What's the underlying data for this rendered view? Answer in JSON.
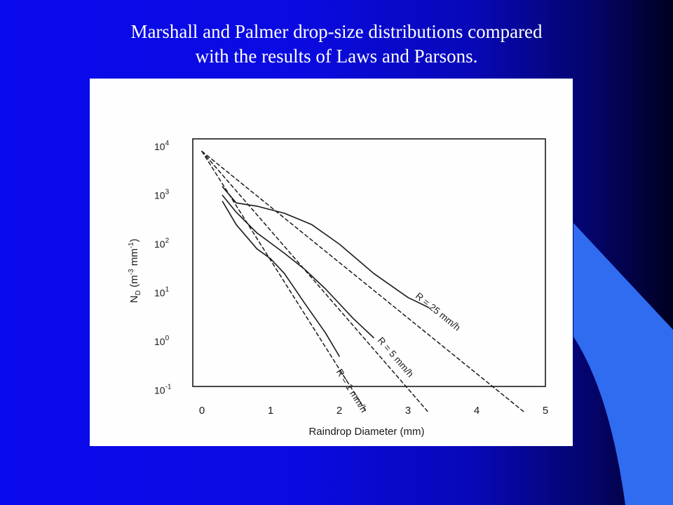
{
  "slide": {
    "title_line1": "Marshall and Palmer drop-size distributions compared",
    "title_line2": "with the results of Laws and Parsons.",
    "colors": {
      "background": "#0a0aee",
      "accent_shape": "#2f6cf0",
      "title_text": "#ffffff",
      "figure_bg": "#fefefe",
      "ink": "#1a1a1a"
    }
  },
  "chart_data": {
    "type": "line",
    "title": "",
    "xlabel": "Raindrop Diameter (mm)",
    "ylabel": "N_D (m^-3 mm^-1)",
    "ylabel_main": "N",
    "ylabel_sub": "D",
    "ylabel_rest": " (m",
    "ylabel_exp1": "-3",
    "ylabel_mid": " mm",
    "ylabel_exp2": "-1",
    "ylabel_end": ")",
    "xlim": [
      0,
      5
    ],
    "ylim_log10": [
      -1,
      4
    ],
    "yscale": "log",
    "grid": false,
    "x_ticks": [
      "0",
      "1",
      "2",
      "3",
      "4",
      "5"
    ],
    "y_ticks": [
      {
        "base": "10",
        "exp": "4"
      },
      {
        "base": "10",
        "exp": "3"
      },
      {
        "base": "10",
        "exp": "2"
      },
      {
        "base": "10",
        "exp": "1"
      },
      {
        "base": "10",
        "exp": "0"
      },
      {
        "base": "10",
        "exp": "-1"
      }
    ],
    "series": [
      {
        "name": "R = 25 mm/h",
        "style": "dashed",
        "x": [
          0,
          4.7
        ],
        "y": [
          8000,
          0.035
        ]
      },
      {
        "name": "R = 5 mm/h",
        "style": "dashed",
        "x": [
          0,
          3.3
        ],
        "y": [
          8000,
          0.035
        ]
      },
      {
        "name": "R = 1 mm/h",
        "style": "dashed",
        "x": [
          0,
          2.4
        ],
        "y": [
          8000,
          0.035
        ]
      },
      {
        "style": "solid",
        "x": [
          0.3,
          0.5,
          0.8,
          1.2,
          1.6,
          2.0,
          2.5,
          3.0,
          3.3
        ],
        "y": [
          1500,
          700,
          600,
          430,
          250,
          100,
          25,
          8,
          5
        ]
      },
      {
        "style": "solid",
        "x": [
          0.3,
          0.5,
          0.8,
          1.0,
          1.2,
          1.5,
          1.8,
          2.2,
          2.5
        ],
        "y": [
          1000,
          450,
          170,
          105,
          65,
          30,
          12,
          3,
          1.2
        ]
      },
      {
        "style": "solid",
        "x": [
          0.3,
          0.5,
          0.8,
          1.0,
          1.2,
          1.5,
          1.8,
          2.0
        ],
        "y": [
          750,
          250,
          80,
          50,
          25,
          6,
          1.5,
          0.5
        ]
      }
    ],
    "labels": [
      {
        "text": "R = 25 mm/h"
      },
      {
        "text": "R = 5 mm/h"
      },
      {
        "text": "R = 1 mm/h"
      }
    ]
  }
}
